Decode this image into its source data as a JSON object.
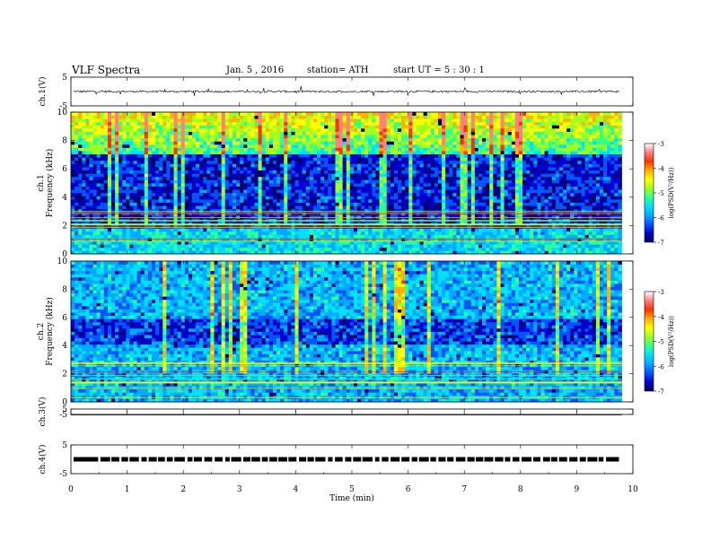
{
  "header": {
    "title": "VLF Spectra",
    "date": "Jan. 5 , 2016",
    "station": "station= ATH",
    "start": "start UT = 5 : 30 : 1"
  },
  "colors": {
    "scale": [
      "#000066",
      "#0000cc",
      "#0055ff",
      "#00aaff",
      "#00e0ff",
      "#30ff90",
      "#a0ff20",
      "#ffff00",
      "#ffb000",
      "#ff3000",
      "#ff8080",
      "#ffffff"
    ]
  },
  "chart_data": [
    {
      "type": "line",
      "ylabel": "ch.1(V)",
      "ylim": [
        -5,
        5
      ],
      "yticks": [
        5,
        -5
      ],
      "baseline": 0,
      "series": []
    },
    {
      "type": "heatmap",
      "ylabel": "ch.1",
      "ylabel2": "Frequency (kHz)",
      "ylim": [
        0,
        10
      ],
      "yticks": [
        0,
        2,
        4,
        6,
        8,
        10
      ],
      "colorbar": {
        "label": "log(PSD(V²/Hz))",
        "ticks": [
          -7,
          -6,
          -5,
          -4,
          -3
        ],
        "range": [
          -7,
          -3
        ]
      }
    },
    {
      "type": "heatmap",
      "ylabel": "ch.2",
      "ylabel2": "Frequency (kHz)",
      "ylim": [
        0,
        10
      ],
      "yticks": [
        0,
        2,
        4,
        6,
        8,
        10
      ],
      "colorbar": {
        "label": "log(PSD(V²/Hz))",
        "ticks": [
          -7,
          -6,
          -5,
          -4,
          -3
        ],
        "range": [
          -7,
          -3
        ]
      }
    },
    {
      "type": "line",
      "ylabel": "ch.3(V)",
      "ylim": [
        -5,
        5
      ],
      "yticks": [
        5,
        -5
      ],
      "baseline": 0,
      "series": []
    },
    {
      "type": "line",
      "ylabel": "ch.4(V)",
      "ylim": [
        -5,
        5
      ],
      "yticks": [
        5,
        -5
      ],
      "baseline": 0,
      "series": []
    }
  ],
  "xaxis": {
    "label": "Time (min)",
    "ticks": [
      0,
      1,
      2,
      3,
      4,
      5,
      6,
      7,
      8,
      9,
      10
    ],
    "xlim": [
      0,
      10
    ],
    "data_end": 9.8
  }
}
